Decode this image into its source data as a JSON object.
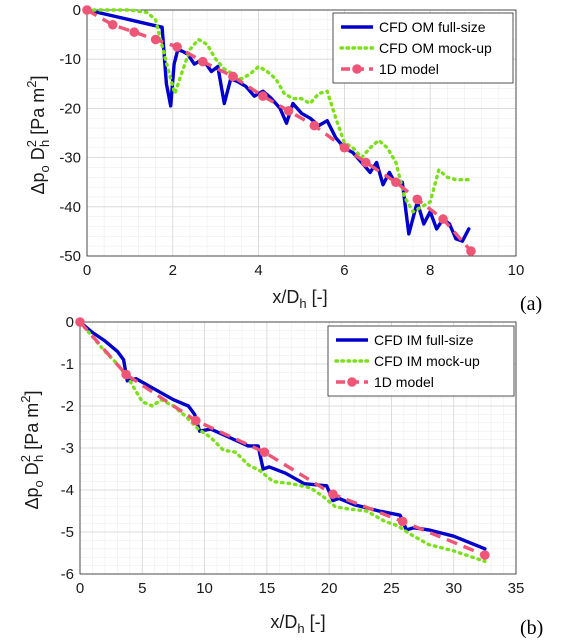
{
  "chart_data": [
    {
      "type": "line",
      "panel_label": "(a)",
      "xlabel": {
        "main": "x/D",
        "sub": "h",
        "rest": " [-]"
      },
      "ylabel": {
        "delta": "Δp",
        "sub_o": "o",
        "d": " D",
        "sup": "2",
        "sub_h": "h",
        "unit": " [Pa m",
        "unit_sup": "2",
        "unit_end": "]"
      },
      "xlim": [
        0,
        10
      ],
      "ylim": [
        -50,
        0
      ],
      "xticks": [
        0,
        2,
        4,
        6,
        8,
        10
      ],
      "yticks": [
        0,
        -10,
        -20,
        -30,
        -40,
        -50
      ],
      "grid": true,
      "legend_position": "top-right",
      "series": [
        {
          "name": "CFD OM full-size",
          "color": "#0000cc",
          "style": "solid",
          "x": [
            0,
            0.5,
            1,
            1.5,
            1.75,
            1.85,
            1.95,
            2.03,
            2.12,
            2.25,
            2.35,
            2.5,
            2.7,
            2.9,
            3.05,
            3.2,
            3.35,
            3.5,
            3.7,
            3.9,
            4.1,
            4.3,
            4.5,
            4.65,
            4.8,
            5.0,
            5.2,
            5.4,
            5.6,
            5.8,
            6.0,
            6.2,
            6.4,
            6.5,
            6.6,
            6.75,
            6.9,
            7.05,
            7.2,
            7.35,
            7.5,
            7.7,
            7.85,
            8.0,
            8.15,
            8.3,
            8.45,
            8.6,
            8.75,
            8.9
          ],
          "y": [
            0,
            -1,
            -2,
            -3,
            -3.5,
            -15,
            -19.5,
            -11,
            -8,
            -8.5,
            -9,
            -11,
            -10,
            -12.5,
            -11.5,
            -19,
            -14,
            -14.5,
            -15.5,
            -17.5,
            -16.5,
            -18,
            -20,
            -23,
            -19,
            -21,
            -22,
            -23.5,
            -22.5,
            -26,
            -28,
            -29,
            -31,
            -32,
            -33,
            -31,
            -35.5,
            -33,
            -35.5,
            -35,
            -45.5,
            -39,
            -43.5,
            -41,
            -44.5,
            -42.5,
            -43.5,
            -46.5,
            -47,
            -44.5
          ]
        },
        {
          "name": "CFD OM mock-up",
          "color": "#7be019",
          "style": "dotted",
          "x": [
            0,
            0.5,
            1,
            1.4,
            1.6,
            1.8,
            1.95,
            2.05,
            2.2,
            2.4,
            2.6,
            2.8,
            3.0,
            3.2,
            3.4,
            3.6,
            3.8,
            4.0,
            4.2,
            4.4,
            4.6,
            4.8,
            5.0,
            5.2,
            5.4,
            5.6,
            5.8,
            6.0,
            6.2,
            6.4,
            6.6,
            6.8,
            7.0,
            7.2,
            7.4,
            7.6,
            7.8,
            8.0,
            8.2,
            8.4,
            8.6,
            8.9
          ],
          "y": [
            0,
            0,
            0,
            -0.5,
            -2,
            -9,
            -14,
            -17,
            -13,
            -8,
            -6,
            -7,
            -10,
            -12,
            -13,
            -14,
            -13,
            -11.5,
            -12.5,
            -14,
            -17,
            -18,
            -18,
            -19,
            -17,
            -16.5,
            -22,
            -27,
            -28,
            -30,
            -28,
            -26.5,
            -28,
            -31,
            -38,
            -41,
            -40,
            -39,
            -32.5,
            -34,
            -34.5,
            -34.5
          ]
        },
        {
          "name": "1D model",
          "color": "#ee5577",
          "style": "dashed-markers",
          "x": [
            0,
            0.6,
            1.1,
            1.6,
            2.1,
            2.7,
            3.4,
            4.1,
            4.7,
            5.3,
            6.0,
            6.5,
            7.2,
            7.7,
            8.3,
            8.95
          ],
          "y": [
            0,
            -3,
            -4.5,
            -6,
            -7.5,
            -10.5,
            -13.5,
            -17.5,
            -20.5,
            -23.5,
            -28,
            -31,
            -35,
            -38.5,
            -42.5,
            -49
          ]
        }
      ]
    },
    {
      "type": "line",
      "panel_label": "(b)",
      "xlabel": {
        "main": "x/D",
        "sub": "h",
        "rest": " [-]"
      },
      "ylabel": {
        "delta": "Δp",
        "sub_o": "o",
        "d": " D",
        "sup": "2",
        "sub_h": "h",
        "unit": " [Pa m",
        "unit_sup": "2",
        "unit_end": "]"
      },
      "xlim": [
        0,
        35
      ],
      "ylim": [
        -6,
        0
      ],
      "xticks": [
        0,
        5,
        10,
        15,
        20,
        25,
        30,
        35
      ],
      "yticks": [
        0,
        -1,
        -2,
        -3,
        -4,
        -5,
        -6
      ],
      "grid": true,
      "legend_position": "top-right",
      "series": [
        {
          "name": "CFD IM full-size",
          "color": "#0000cc",
          "style": "solid",
          "x": [
            0,
            1,
            2,
            3,
            3.5,
            3.8,
            4.5,
            6,
            7.5,
            8.7,
            9.2,
            9.6,
            10.5,
            12,
            13.5,
            14.3,
            14.7,
            15.2,
            16.5,
            18,
            19.8,
            20.3,
            20.8,
            22,
            24,
            25.7,
            26.2,
            26.8,
            28,
            30,
            32.5
          ],
          "y": [
            0,
            -0.25,
            -0.45,
            -0.7,
            -0.9,
            -1.4,
            -1.35,
            -1.6,
            -1.85,
            -2.0,
            -2.2,
            -2.6,
            -2.55,
            -2.75,
            -2.95,
            -2.95,
            -3.5,
            -3.45,
            -3.6,
            -3.85,
            -3.9,
            -4.25,
            -4.2,
            -4.35,
            -4.5,
            -4.6,
            -4.95,
            -4.9,
            -4.95,
            -5.1,
            -5.4
          ]
        },
        {
          "name": "CFD IM mock-up",
          "color": "#7be019",
          "style": "dotted",
          "x": [
            0,
            1,
            2,
            3,
            4,
            5,
            5.8,
            6.5,
            7.5,
            8.5,
            9.5,
            10.5,
            11.5,
            12.5,
            13.5,
            14.5,
            15.5,
            17,
            18.5,
            19.5,
            20.5,
            21.5,
            23,
            24.5,
            25.5,
            26.5,
            28,
            30,
            32.5
          ],
          "y": [
            0,
            -0.35,
            -0.7,
            -1.0,
            -1.4,
            -1.9,
            -2.0,
            -1.85,
            -2.0,
            -2.25,
            -2.55,
            -2.75,
            -3.05,
            -3.1,
            -3.4,
            -3.55,
            -3.8,
            -3.85,
            -3.95,
            -4.15,
            -4.4,
            -4.45,
            -4.5,
            -4.75,
            -4.85,
            -5.05,
            -5.3,
            -5.45,
            -5.7
          ]
        },
        {
          "name": "1D model",
          "color": "#ee5577",
          "style": "dashed-markers",
          "x": [
            0,
            3.7,
            9.3,
            14.8,
            20.3,
            25.9,
            32.5
          ],
          "y": [
            0,
            -1.25,
            -2.35,
            -3.1,
            -4.1,
            -4.75,
            -5.55
          ]
        }
      ]
    }
  ]
}
